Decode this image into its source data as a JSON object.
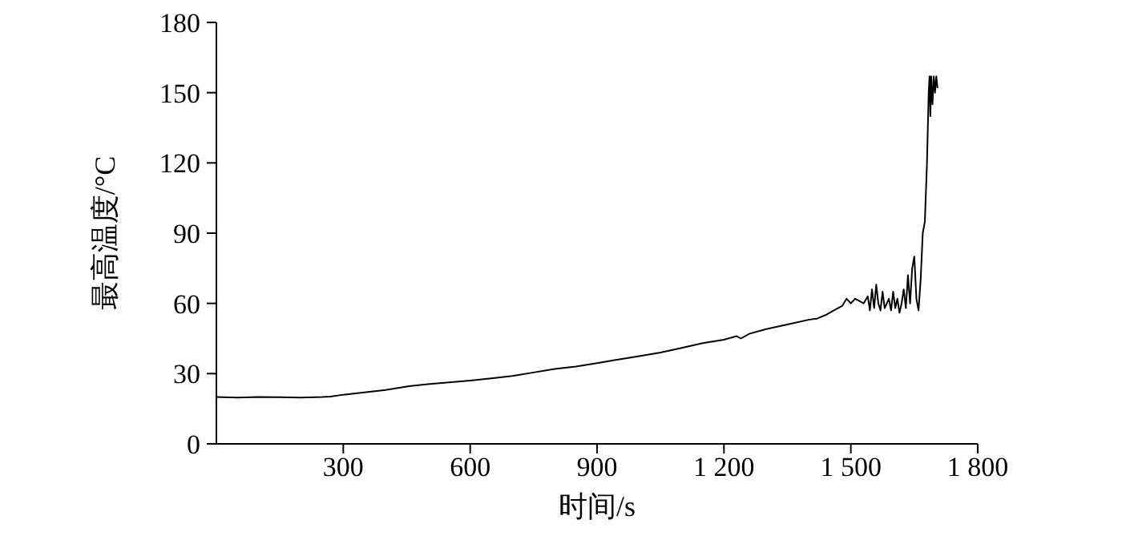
{
  "chart_data": {
    "type": "line",
    "xlabel": "时间/s",
    "ylabel": "最高温度/°C",
    "xlim": [
      0,
      1800
    ],
    "xticks": [
      300,
      600,
      900,
      {
        "value": 1200,
        "label": "1 200"
      },
      {
        "value": 1500,
        "label": "1 500"
      },
      {
        "value": 1800,
        "label": "1 800"
      }
    ],
    "ylim": [
      0,
      180
    ],
    "yticks": [
      0,
      30,
      60,
      90,
      120,
      150,
      180
    ],
    "marker": "none",
    "series": [
      {
        "color": "#000000",
        "x": [
          0,
          50,
          100,
          150,
          200,
          250,
          270,
          300,
          350,
          400,
          450,
          500,
          550,
          600,
          650,
          700,
          750,
          800,
          850,
          900,
          950,
          1000,
          1050,
          1100,
          1150,
          1200,
          1230,
          1240,
          1260,
          1300,
          1350,
          1400,
          1420,
          1440,
          1460,
          1480,
          1490,
          1500,
          1510,
          1520,
          1530,
          1540,
          1545,
          1550,
          1555,
          1560,
          1565,
          1570,
          1575,
          1580,
          1590,
          1595,
          1600,
          1605,
          1610,
          1615,
          1620,
          1625,
          1630,
          1635,
          1640,
          1645,
          1650,
          1655,
          1660,
          1665,
          1670,
          1675,
          1680,
          1684,
          1686,
          1688,
          1690,
          1693,
          1696,
          1699,
          1702,
          1705
        ],
        "values": [
          20,
          19.8,
          20,
          19.9,
          19.8,
          20,
          20.2,
          21,
          22,
          23,
          24.5,
          25.5,
          26.3,
          27,
          28,
          29,
          30.5,
          32,
          33,
          34.5,
          36,
          37.5,
          39,
          41,
          43,
          44.5,
          46,
          45,
          47,
          49,
          51,
          53,
          53.5,
          55,
          57,
          59,
          62,
          60,
          62,
          61,
          60,
          63,
          57,
          66,
          58,
          68,
          60,
          57,
          65,
          58,
          62,
          57,
          65,
          58,
          62,
          56,
          60,
          66,
          58,
          72,
          60,
          75,
          80,
          62,
          57,
          70,
          90,
          95,
          120,
          150,
          157,
          140,
          157,
          145,
          157,
          150,
          157,
          152
        ]
      }
    ]
  }
}
